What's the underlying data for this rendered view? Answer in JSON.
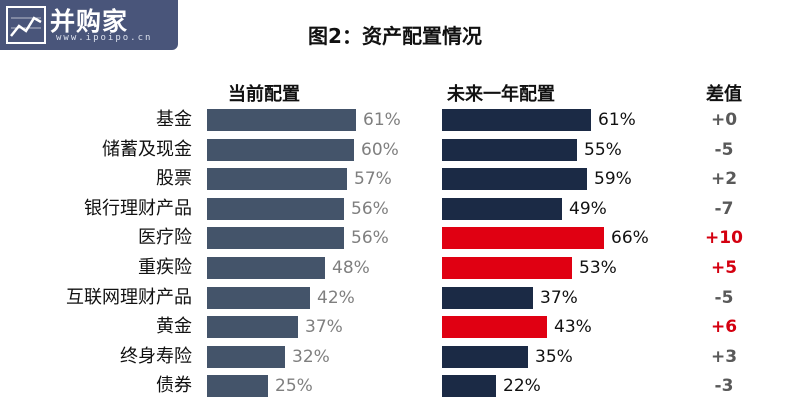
{
  "logo": {
    "name": "并购家",
    "url": "www.ipoipo.cn"
  },
  "colors": {
    "current_bar": "#44546a",
    "future_bar": "#1b2a45",
    "highlight_bar": "#e00012",
    "highlight_text": "#d40010",
    "neutral_diff_text": "#595959"
  },
  "chart_data": {
    "type": "bar",
    "orientation": "horizontal",
    "title": "图2：资产配置情况",
    "unit": "%",
    "columns": [
      "当前配置",
      "未来一年配置",
      "差值"
    ],
    "categories": [
      "基金",
      "储蓄及现金",
      "股票",
      "银行理财产品",
      "医疗险",
      "重疾险",
      "互联网理财产品",
      "黄金",
      "终身寿险",
      "债券"
    ],
    "series": [
      {
        "name": "当前配置",
        "values": [
          61,
          60,
          57,
          56,
          56,
          48,
          42,
          37,
          32,
          25
        ]
      },
      {
        "name": "未来一年配置",
        "values": [
          61,
          55,
          59,
          49,
          66,
          53,
          37,
          43,
          35,
          22
        ]
      }
    ],
    "diff_labels": [
      "+0",
      "-5",
      "+2",
      "-7",
      "+10",
      "+5",
      "-5",
      "+6",
      "+3",
      "-3"
    ],
    "highlighted_categories": [
      "医疗险",
      "重疾险",
      "黄金"
    ],
    "grid": false,
    "legend": "column headers"
  }
}
